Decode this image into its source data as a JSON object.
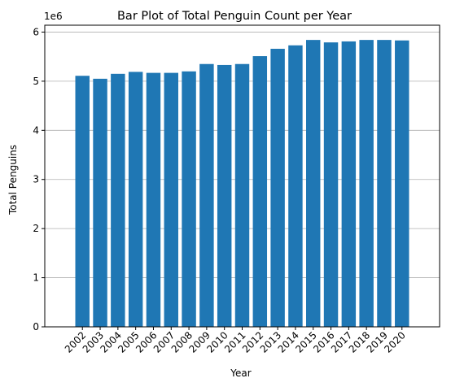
{
  "chart_data": {
    "type": "bar",
    "title": "Bar Plot of Total Penguin Count per Year",
    "xlabel": "Year",
    "ylabel": "Total Penguins",
    "y_multiplier_label": "1e6",
    "categories": [
      "2002",
      "2003",
      "2004",
      "2005",
      "2006",
      "2007",
      "2008",
      "2009",
      "2010",
      "2011",
      "2012",
      "2013",
      "2014",
      "2015",
      "2016",
      "2017",
      "2018",
      "2019",
      "2020"
    ],
    "values": [
      5110000,
      5050000,
      5150000,
      5190000,
      5170000,
      5170000,
      5200000,
      5350000,
      5330000,
      5350000,
      5510000,
      5660000,
      5730000,
      5840000,
      5790000,
      5810000,
      5840000,
      5840000,
      5830000
    ],
    "yticks": [
      0,
      1000000,
      2000000,
      3000000,
      4000000,
      5000000,
      6000000
    ],
    "ytick_labels": [
      "0",
      "1",
      "2",
      "3",
      "4",
      "5",
      "6"
    ],
    "ylim": [
      0,
      6140000
    ],
    "grid": "y-axis",
    "colors": {
      "bar": "#1f77b4",
      "grid": "#b0b0b0",
      "axis": "#000000"
    }
  }
}
